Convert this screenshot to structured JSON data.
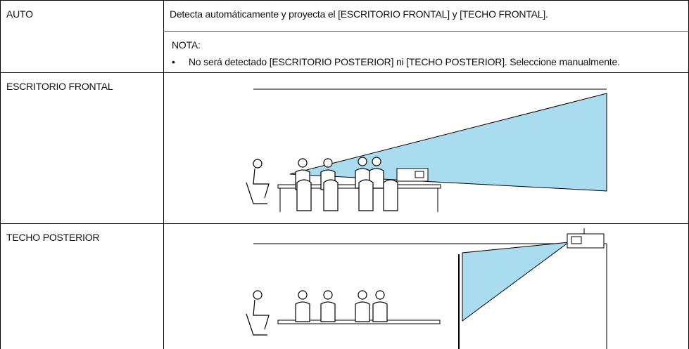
{
  "table": {
    "rows": [
      {
        "label": "AUTO",
        "description": "Detecta automáticamente y proyecta el [ESCRITORIO FRONTAL] y [TECHO FRONTAL].",
        "note": {
          "title": "NOTA:",
          "items": [
            "No será detectado [ESCRITORIO POSTERIOR] ni [TECHO POSTERIOR]. Seleccione manualmente."
          ]
        }
      },
      {
        "label": "ESCRITORIO FRONTAL"
      },
      {
        "label": "TECHO POSTERIOR"
      }
    ]
  }
}
